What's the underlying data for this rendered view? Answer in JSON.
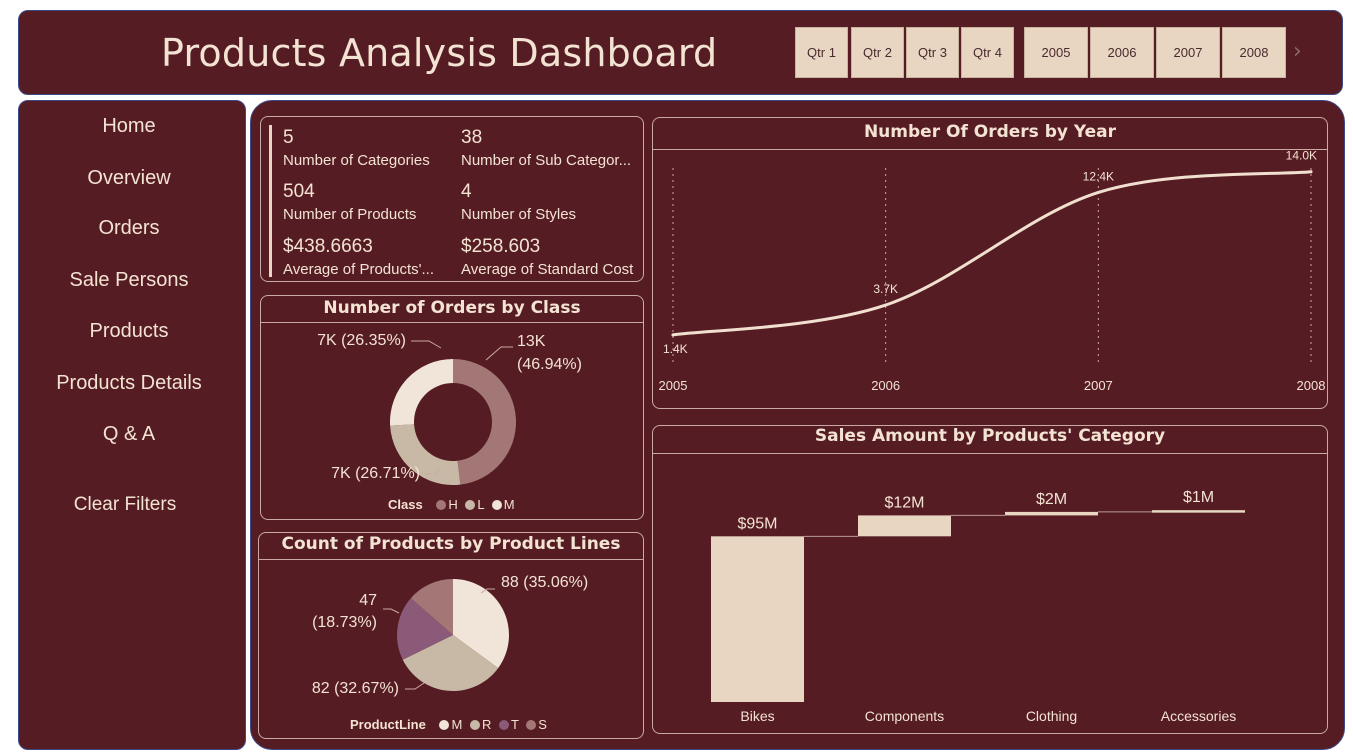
{
  "header": {
    "title": "Products Analysis Dashboard",
    "quarters": [
      "Qtr 1",
      "Qtr 2",
      "Qtr 3",
      "Qtr 4"
    ],
    "years": [
      "2005",
      "2006",
      "2007",
      "2008"
    ],
    "next_icon": "chevron-right-icon"
  },
  "sidebar": {
    "items": [
      "Home",
      "Overview",
      "Orders",
      "Sale Persons",
      "Products",
      "Products Details",
      "Q & A"
    ],
    "clear_filters": "Clear Filters"
  },
  "kpis": [
    {
      "value": "5",
      "label": "Number of Categories"
    },
    {
      "value": "38",
      "label": "Number of Sub Categor..."
    },
    {
      "value": "504",
      "label": "Number of Products"
    },
    {
      "value": "4",
      "label": "Number of Styles"
    },
    {
      "value": "$438.6663",
      "label": "Average of Products'..."
    },
    {
      "value": "$258.603",
      "label": "Average of Standard Cost"
    }
  ],
  "colors": {
    "background": "#561c24",
    "cream": "#e8d6c2",
    "text": "#f3e3d3",
    "rose": "#a47777",
    "tan": "#c8b9a7",
    "plum": "#8b5a78",
    "border": "#3d4a8a"
  },
  "chart_data": [
    {
      "type": "line",
      "title": "Number Of Orders by Year",
      "x": [
        "2005",
        "2006",
        "2007",
        "2008"
      ],
      "series": [
        {
          "values": [
            1400,
            3700,
            12400,
            14000
          ]
        }
      ],
      "data_labels": [
        "1.4K",
        "3.7K",
        "12.4K",
        "14.0K"
      ],
      "ylim": [
        0,
        14000
      ],
      "grid": "vertical dotted lines"
    },
    {
      "type": "pie",
      "title": "Number of Orders by Class",
      "variant": "donut",
      "legend_title": "Class",
      "legend": [
        "H",
        "L",
        "M"
      ],
      "values": [
        13000,
        7000,
        7000
      ],
      "percentages": [
        46.94,
        26.71,
        26.35
      ],
      "labels": [
        "13K (46.94%)",
        "7K (26.71%)",
        "7K (26.35%)"
      ],
      "colors": [
        "#a47777",
        "#c8b9a7",
        "#f1e4d8"
      ],
      "legend_placement": "bottom"
    },
    {
      "type": "pie",
      "title": "Count of Products by Product Lines",
      "legend_title": "ProductLine",
      "legend": [
        "M",
        "R",
        "T",
        "S"
      ],
      "values": [
        88,
        82,
        47,
        34
      ],
      "percentages": [
        35.06,
        32.67,
        18.73,
        13.54
      ],
      "labels": [
        "88 (35.06%)",
        "82 (32.67%)",
        "47 (18.73%)",
        ""
      ],
      "colors": [
        "#f1e4d8",
        "#c8b9a7",
        "#8b5a78",
        "#a47777"
      ],
      "legend_placement": "bottom"
    },
    {
      "type": "bar",
      "variant": "waterfall",
      "title": "Sales Amount by Products' Category",
      "categories": [
        "Bikes",
        "Components",
        "Clothing",
        "Accessories"
      ],
      "values": [
        95,
        12,
        2,
        1
      ],
      "value_labels": [
        "$95M",
        "$12M",
        "$2M",
        "$1M"
      ],
      "unit": "$M"
    }
  ]
}
